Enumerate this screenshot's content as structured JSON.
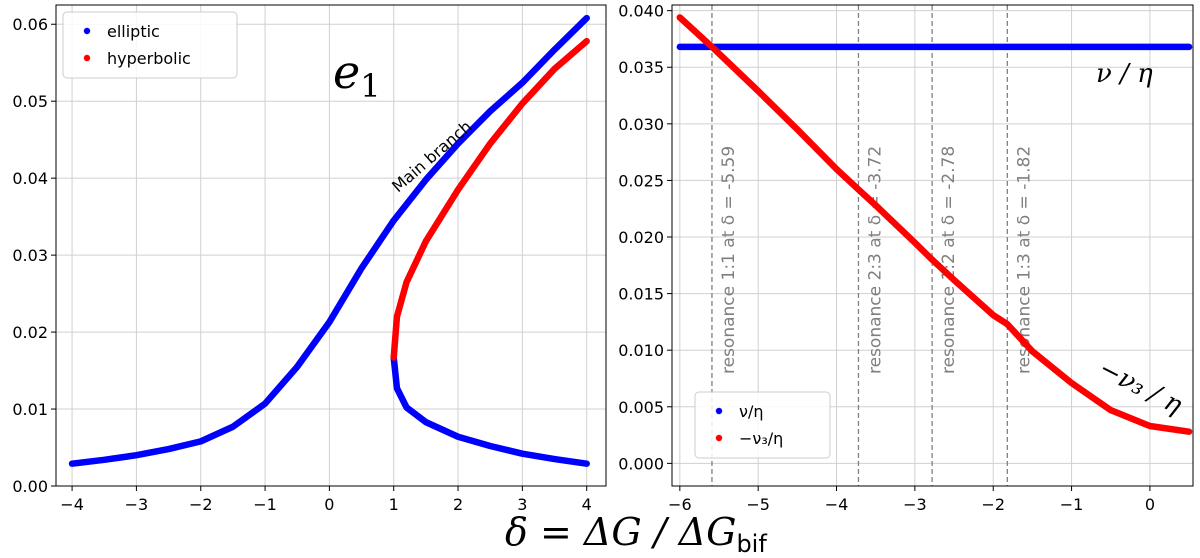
{
  "xlabel_main": "δ = ΔG / ΔG",
  "xlabel_sub": "bif",
  "chart_data": [
    {
      "type": "scatter",
      "annotation_symbol": "e",
      "annotation_subscript": "1",
      "branch_label": "Main branch",
      "xlim": [
        -4.25,
        4.3
      ],
      "ylim": [
        0.0,
        0.0625
      ],
      "xticks": [
        -4,
        -3,
        -2,
        -1,
        0,
        1,
        2,
        3,
        4
      ],
      "xtick_labels": [
        "−4",
        "−3",
        "−2",
        "−1",
        "0",
        "1",
        "2",
        "3",
        "4"
      ],
      "yticks": [
        0.0,
        0.01,
        0.02,
        0.03,
        0.04,
        0.05,
        0.06
      ],
      "ytick_labels": [
        "0.00",
        "0.01",
        "0.02",
        "0.03",
        "0.04",
        "0.05",
        "0.06"
      ],
      "grid": true,
      "legend_position": "top-left",
      "series": [
        {
          "name": "elliptic",
          "color": "#0000ff",
          "segments": [
            [
              [
                -4,
                0.0029
              ],
              [
                -3.5,
                0.0034
              ],
              [
                -3,
                0.004
              ],
              [
                -2.5,
                0.0048
              ],
              [
                -2,
                0.0058
              ],
              [
                -1.5,
                0.0077
              ],
              [
                -1,
                0.0107
              ],
              [
                -0.5,
                0.0155
              ],
              [
                0,
                0.0213
              ],
              [
                0.5,
                0.0283
              ],
              [
                1,
                0.0345
              ],
              [
                1.5,
                0.0398
              ],
              [
                2,
                0.0445
              ],
              [
                2.5,
                0.0487
              ],
              [
                3,
                0.0524
              ],
              [
                3.5,
                0.0567
              ],
              [
                4,
                0.0608
              ]
            ],
            [
              [
                1.0,
                0.0167
              ],
              [
                1.05,
                0.0127
              ],
              [
                1.2,
                0.0102
              ],
              [
                1.5,
                0.0083
              ],
              [
                2,
                0.0064
              ],
              [
                2.5,
                0.0052
              ],
              [
                3,
                0.0042
              ],
              [
                3.5,
                0.0035
              ],
              [
                4,
                0.0029
              ]
            ]
          ]
        },
        {
          "name": "hyperbolic",
          "color": "#ff0000",
          "segments": [
            [
              [
                1.0,
                0.0167
              ],
              [
                1.05,
                0.022
              ],
              [
                1.2,
                0.0265
              ],
              [
                1.5,
                0.0318
              ],
              [
                2,
                0.0385
              ],
              [
                2.5,
                0.0445
              ],
              [
                3,
                0.0497
              ],
              [
                3.5,
                0.0542
              ],
              [
                4,
                0.0578
              ]
            ]
          ]
        }
      ]
    },
    {
      "type": "scatter",
      "xlim": [
        -6.1,
        0.55
      ],
      "ylim": [
        -0.002,
        0.0405
      ],
      "xticks": [
        -6,
        -5,
        -4,
        -3,
        -2,
        -1,
        0
      ],
      "xtick_labels": [
        "−6",
        "−5",
        "−4",
        "−3",
        "−2",
        "−1",
        "0"
      ],
      "yticks": [
        0.0,
        0.005,
        0.01,
        0.015,
        0.02,
        0.025,
        0.03,
        0.035,
        0.04
      ],
      "ytick_labels": [
        "0.000",
        "0.005",
        "0.010",
        "0.015",
        "0.020",
        "0.025",
        "0.030",
        "0.035",
        "0.040"
      ],
      "grid": true,
      "legend_position": "bottom-left",
      "curve_label_nu": "ν / η",
      "curve_label_nu3": "−ν₃ / η",
      "resonances": [
        {
          "x": -5.59,
          "label": "resonance 1:1 at δ = -5.59"
        },
        {
          "x": -3.72,
          "label": "resonance 2:3 at δ = -3.72"
        },
        {
          "x": -2.78,
          "label": "resonance 1:2 at δ = -2.78"
        },
        {
          "x": -1.82,
          "label": "resonance 1:3 at δ = -1.82"
        }
      ],
      "series": [
        {
          "name": "ν/η",
          "color": "#0000ff",
          "points": [
            [
              -6,
              0.0368
            ],
            [
              -3,
              0.0368
            ],
            [
              0,
              0.0368
            ],
            [
              0.5,
              0.0368
            ]
          ]
        },
        {
          "name": "−ν₃/η",
          "color": "#ff0000",
          "points": [
            [
              -6,
              0.0394
            ],
            [
              -5.59,
              0.0368
            ],
            [
              -5,
              0.0329
            ],
            [
              -4.5,
              0.0295
            ],
            [
              -4,
              0.026
            ],
            [
              -3.72,
              0.0242
            ],
            [
              -3.5,
              0.0228
            ],
            [
              -3,
              0.0195
            ],
            [
              -2.78,
              0.018
            ],
            [
              -2.5,
              0.0162
            ],
            [
              -2,
              0.0131
            ],
            [
              -1.82,
              0.0123
            ],
            [
              -1.5,
              0.0099
            ],
            [
              -1,
              0.0071
            ],
            [
              -0.5,
              0.0047
            ],
            [
              0,
              0.0033
            ],
            [
              0.5,
              0.0028
            ]
          ]
        }
      ]
    }
  ]
}
